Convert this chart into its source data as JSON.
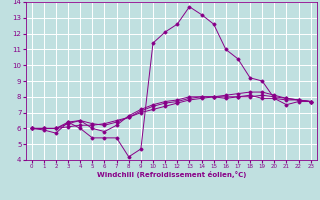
{
  "xlabel": "Windchill (Refroidissement éolien,°C)",
  "ylabel": "",
  "xlim": [
    -0.5,
    23.5
  ],
  "ylim": [
    4,
    14
  ],
  "xticks": [
    0,
    1,
    2,
    3,
    4,
    5,
    6,
    7,
    8,
    9,
    10,
    11,
    12,
    13,
    14,
    15,
    16,
    17,
    18,
    19,
    20,
    21,
    22,
    23
  ],
  "yticks": [
    4,
    5,
    6,
    7,
    8,
    9,
    10,
    11,
    12,
    13,
    14
  ],
  "bg_color": "#c0e0e0",
  "line_color": "#880088",
  "grid_color": "#ffffff",
  "lines": [
    {
      "x": [
        0,
        1,
        2,
        3,
        4,
        5,
        6,
        7,
        8,
        9,
        10,
        11,
        12,
        13,
        14,
        15,
        16,
        17,
        18,
        19,
        20,
        21,
        22,
        23
      ],
      "y": [
        6.0,
        5.9,
        5.7,
        6.4,
        6.0,
        5.4,
        5.4,
        5.4,
        4.2,
        4.7,
        11.4,
        12.1,
        12.6,
        13.7,
        13.2,
        12.6,
        11.0,
        10.4,
        9.2,
        9.0,
        7.9,
        7.5,
        7.7,
        7.7
      ]
    },
    {
      "x": [
        0,
        1,
        2,
        3,
        4,
        5,
        6,
        7,
        8,
        9,
        10,
        11,
        12,
        13,
        14,
        15,
        16,
        17,
        18,
        19,
        20,
        21,
        22,
        23
      ],
      "y": [
        6.0,
        6.0,
        6.0,
        6.1,
        6.2,
        6.2,
        6.3,
        6.5,
        6.7,
        7.0,
        7.2,
        7.4,
        7.6,
        7.8,
        7.9,
        8.0,
        8.1,
        8.2,
        8.3,
        8.3,
        8.1,
        7.9,
        7.8,
        7.7
      ]
    },
    {
      "x": [
        0,
        1,
        2,
        3,
        4,
        5,
        6,
        7,
        8,
        9,
        10,
        11,
        12,
        13,
        14,
        15,
        16,
        17,
        18,
        19,
        20,
        21,
        22,
        23
      ],
      "y": [
        6.0,
        6.0,
        6.0,
        6.3,
        6.5,
        6.3,
        6.2,
        6.4,
        6.7,
        7.1,
        7.4,
        7.6,
        7.7,
        7.9,
        8.0,
        8.0,
        8.0,
        8.0,
        8.1,
        7.9,
        7.9,
        7.8,
        7.8,
        7.7
      ]
    },
    {
      "x": [
        0,
        1,
        2,
        3,
        4,
        5,
        6,
        7,
        8,
        9,
        10,
        11,
        12,
        13,
        14,
        15,
        16,
        17,
        18,
        19,
        20,
        21,
        22,
        23
      ],
      "y": [
        6.0,
        6.0,
        6.0,
        6.4,
        6.5,
        6.0,
        5.8,
        6.2,
        6.8,
        7.2,
        7.5,
        7.7,
        7.8,
        8.0,
        8.0,
        8.0,
        7.9,
        8.0,
        8.0,
        8.1,
        8.0,
        7.9,
        7.8,
        7.7
      ]
    }
  ]
}
